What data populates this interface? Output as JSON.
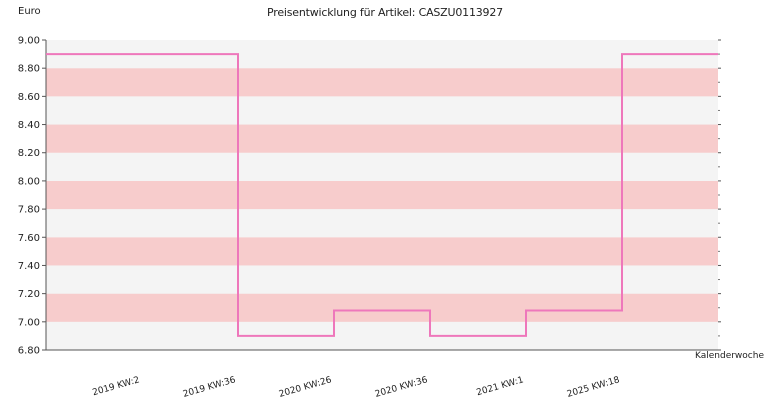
{
  "chart_data": {
    "type": "line",
    "title": "Preisentwicklung für Artikel: CASZU0113927",
    "xlabel": "Kalenderwoche",
    "ylabel": "Euro",
    "ylim": [
      6.8,
      9.0
    ],
    "yticks": [
      "6.80",
      "7.00",
      "7.20",
      "7.40",
      "7.60",
      "7.80",
      "8.00",
      "8.20",
      "8.40",
      "8.60",
      "8.80",
      "9.00"
    ],
    "xticks": [
      "2019 KW:2",
      "2019 KW:36",
      "2020 KW:26",
      "2020 KW:36",
      "2021 KW:1",
      "2025 KW:18"
    ],
    "grid": "alternating horizontal bands",
    "line_style": "step",
    "series": [
      {
        "color": "#ee77bb",
        "x": [
          0,
          1,
          2,
          3,
          4,
          5,
          5.95
        ],
        "values": [
          8.9,
          6.9,
          7.08,
          6.9,
          7.08,
          8.9,
          8.9
        ]
      }
    ],
    "colors": {
      "band_dark": "#f7cccc",
      "band_light": "#f4f4f4",
      "line": "#ee77bb"
    }
  }
}
